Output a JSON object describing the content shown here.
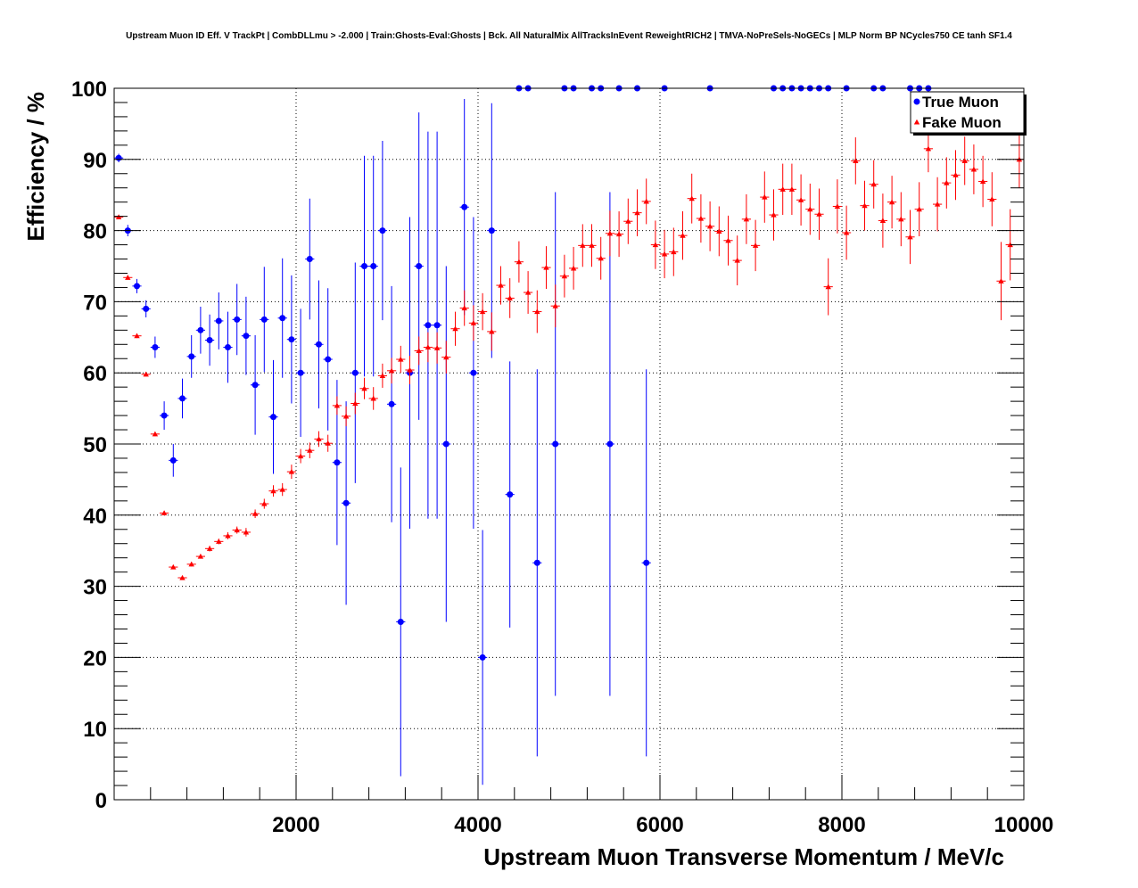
{
  "chart_data": {
    "type": "scatter",
    "title": "Upstream Muon ID Eff. V TrackPt | CombDLLmu > -2.000 | Train:Ghosts-Eval:Ghosts | Bck. All NaturalMix AllTracksInEvent ReweightRICH2 | TMVA-NoPreSels-NoGECs | MLP Norm BP NCycles750 CE tanh SF1.4",
    "xlabel": "Upstream Muon Transverse Momentum / MeV/c",
    "ylabel": "Efficiency / %",
    "xlim": [
      0,
      10000
    ],
    "ylim": [
      0,
      100
    ],
    "x_ticks": [
      2000,
      4000,
      6000,
      8000,
      10000
    ],
    "x_tick_labels": [
      "2000",
      "4000",
      "6000",
      "8000",
      "10000"
    ],
    "y_ticks": [
      0,
      10,
      20,
      30,
      40,
      50,
      60,
      70,
      80,
      90,
      100
    ],
    "y_tick_labels": [
      "0",
      "10",
      "20",
      "30",
      "40",
      "50",
      "60",
      "70",
      "80",
      "90",
      "100"
    ],
    "grid": true,
    "legend_position": "top-right",
    "series": [
      {
        "name": "True Muon",
        "color": "#0000ff",
        "marker": "circle",
        "points": [
          [
            50,
            90.2,
            0.6
          ],
          [
            150,
            80.0,
            0.8
          ],
          [
            250,
            72.2,
            1.0
          ],
          [
            350,
            69.0,
            1.2
          ],
          [
            450,
            63.6,
            1.5
          ],
          [
            550,
            54.0,
            2.0
          ],
          [
            650,
            47.7,
            2.3
          ],
          [
            750,
            56.4,
            2.8
          ],
          [
            850,
            62.3,
            3.0
          ],
          [
            950,
            66.0,
            3.3
          ],
          [
            1050,
            64.6,
            3.6
          ],
          [
            1150,
            67.3,
            4.0
          ],
          [
            1250,
            63.6,
            5.0
          ],
          [
            1350,
            67.5,
            5.0
          ],
          [
            1450,
            65.2,
            5.5
          ],
          [
            1550,
            58.3,
            7.0
          ],
          [
            1650,
            67.5,
            7.4
          ],
          [
            1750,
            53.8,
            8.0
          ],
          [
            1850,
            67.7,
            8.4
          ],
          [
            1950,
            64.7,
            9.0
          ],
          [
            2050,
            60.0,
            9.0
          ],
          [
            2150,
            76.0,
            8.5
          ],
          [
            2250,
            64.0,
            9.0
          ],
          [
            2350,
            61.9,
            10.0
          ],
          [
            2450,
            47.4,
            11.6
          ],
          [
            2550,
            41.7,
            14.3
          ],
          [
            2650,
            60.0,
            15.5
          ],
          [
            2750,
            75.0,
            15.5
          ],
          [
            2850,
            75.0,
            15.5
          ],
          [
            2950,
            80.0,
            12.6
          ],
          [
            3050,
            55.6,
            16.6
          ],
          [
            3150,
            25.0,
            21.7
          ],
          [
            3250,
            60.0,
            21.9
          ],
          [
            3350,
            75.0,
            21.6
          ],
          [
            3450,
            66.7,
            27.2
          ],
          [
            3550,
            66.7,
            27.2
          ],
          [
            3650,
            50.0,
            25.0
          ],
          [
            3850,
            83.3,
            15.2
          ],
          [
            3950,
            60.0,
            21.9
          ],
          [
            4050,
            20.0,
            17.9
          ],
          [
            4150,
            80.0,
            17.9
          ],
          [
            4350,
            42.9,
            18.7
          ],
          [
            4450,
            100.0,
            0
          ],
          [
            4550,
            100.0,
            0
          ],
          [
            4650,
            33.3,
            27.2
          ],
          [
            4850,
            50.0,
            35.4
          ],
          [
            4950,
            100.0,
            0
          ],
          [
            5050,
            100.0,
            0
          ],
          [
            5250,
            100.0,
            0
          ],
          [
            5350,
            100.0,
            0
          ],
          [
            5450,
            50.0,
            35.4
          ],
          [
            5550,
            100.0,
            0
          ],
          [
            5750,
            100.0,
            0
          ],
          [
            5850,
            33.3,
            27.2
          ],
          [
            6050,
            100.0,
            0
          ],
          [
            6550,
            100.0,
            0
          ],
          [
            7250,
            100.0,
            0
          ],
          [
            7350,
            100.0,
            0
          ],
          [
            7450,
            100.0,
            0
          ],
          [
            7550,
            100.0,
            0
          ],
          [
            7650,
            100.0,
            0
          ],
          [
            7750,
            100.0,
            0
          ],
          [
            7850,
            100.0,
            0
          ],
          [
            8050,
            100.0,
            0
          ],
          [
            8350,
            100.0,
            0
          ],
          [
            8450,
            100.0,
            0
          ],
          [
            8750,
            100.0,
            0
          ],
          [
            8850,
            100.0,
            0
          ],
          [
            8950,
            100.0,
            0
          ]
        ]
      },
      {
        "name": "Fake Muon",
        "color": "#ff0000",
        "marker": "triangle",
        "points": [
          [
            50,
            81.9,
            0.3
          ],
          [
            150,
            73.4,
            0.3
          ],
          [
            250,
            65.2,
            0.3
          ],
          [
            350,
            59.8,
            0.3
          ],
          [
            450,
            51.4,
            0.3
          ],
          [
            550,
            40.3,
            0.3
          ],
          [
            650,
            32.7,
            0.3
          ],
          [
            750,
            31.2,
            0.3
          ],
          [
            850,
            33.1,
            0.3
          ],
          [
            950,
            34.2,
            0.3
          ],
          [
            1050,
            35.3,
            0.4
          ],
          [
            1150,
            36.3,
            0.4
          ],
          [
            1250,
            37.1,
            0.5
          ],
          [
            1350,
            37.9,
            0.5
          ],
          [
            1450,
            37.6,
            0.6
          ],
          [
            1550,
            40.2,
            0.6
          ],
          [
            1650,
            41.6,
            0.7
          ],
          [
            1750,
            43.4,
            0.8
          ],
          [
            1850,
            43.6,
            0.9
          ],
          [
            1950,
            46.1,
            1.0
          ],
          [
            2050,
            48.3,
            1.0
          ],
          [
            2150,
            49.1,
            1.1
          ],
          [
            2250,
            50.7,
            1.1
          ],
          [
            2350,
            50.1,
            1.2
          ],
          [
            2450,
            55.4,
            1.3
          ],
          [
            2550,
            53.9,
            1.4
          ],
          [
            2650,
            55.7,
            1.5
          ],
          [
            2750,
            57.8,
            1.5
          ],
          [
            2850,
            56.4,
            1.6
          ],
          [
            2950,
            59.6,
            1.7
          ],
          [
            3050,
            60.3,
            1.8
          ],
          [
            3150,
            61.9,
            1.9
          ],
          [
            3250,
            60.4,
            2.0
          ],
          [
            3350,
            63.1,
            2.0
          ],
          [
            3450,
            63.6,
            2.1
          ],
          [
            3550,
            63.5,
            2.2
          ],
          [
            3650,
            62.2,
            2.3
          ],
          [
            3750,
            66.2,
            2.4
          ],
          [
            3850,
            69.1,
            2.5
          ],
          [
            3950,
            67.0,
            2.5
          ],
          [
            4050,
            68.6,
            2.6
          ],
          [
            4150,
            65.8,
            2.7
          ],
          [
            4250,
            72.3,
            2.7
          ],
          [
            4350,
            70.5,
            2.8
          ],
          [
            4450,
            75.6,
            2.9
          ],
          [
            4550,
            71.3,
            3.0
          ],
          [
            4650,
            68.6,
            3.0
          ],
          [
            4750,
            74.8,
            3.0
          ],
          [
            4850,
            69.4,
            3.0
          ],
          [
            4950,
            73.6,
            3.0
          ],
          [
            5050,
            74.7,
            3.0
          ],
          [
            5150,
            77.9,
            3.0
          ],
          [
            5250,
            77.9,
            3.0
          ],
          [
            5350,
            76.1,
            3.0
          ],
          [
            5450,
            79.6,
            3.2
          ],
          [
            5550,
            79.5,
            3.2
          ],
          [
            5650,
            81.3,
            3.2
          ],
          [
            5750,
            82.5,
            3.3
          ],
          [
            5850,
            84.1,
            3.2
          ],
          [
            5950,
            78.0,
            3.4
          ],
          [
            6050,
            76.7,
            3.4
          ],
          [
            6150,
            77.0,
            3.4
          ],
          [
            6250,
            79.3,
            3.4
          ],
          [
            6350,
            84.5,
            3.5
          ],
          [
            6450,
            81.7,
            3.4
          ],
          [
            6550,
            80.6,
            3.5
          ],
          [
            6650,
            79.9,
            3.5
          ],
          [
            6750,
            78.6,
            3.5
          ],
          [
            6850,
            75.8,
            3.5
          ],
          [
            6950,
            81.6,
            3.5
          ],
          [
            7050,
            77.9,
            3.6
          ],
          [
            7150,
            84.7,
            3.6
          ],
          [
            7250,
            82.2,
            3.6
          ],
          [
            7350,
            85.8,
            3.6
          ],
          [
            7450,
            85.8,
            3.6
          ],
          [
            7550,
            84.3,
            3.6
          ],
          [
            7650,
            83.0,
            3.6
          ],
          [
            7750,
            82.3,
            3.6
          ],
          [
            7850,
            72.1,
            4.0
          ],
          [
            7950,
            83.4,
            3.8
          ],
          [
            8050,
            79.7,
            3.8
          ],
          [
            8150,
            89.8,
            3.3
          ],
          [
            8250,
            83.5,
            3.5
          ],
          [
            8350,
            86.5,
            3.4
          ],
          [
            8450,
            81.4,
            3.8
          ],
          [
            8550,
            84.0,
            3.7
          ],
          [
            8650,
            81.6,
            3.8
          ],
          [
            8750,
            79.1,
            3.8
          ],
          [
            8850,
            83.0,
            3.8
          ],
          [
            8950,
            91.5,
            3.3
          ],
          [
            9050,
            83.7,
            3.8
          ],
          [
            9150,
            86.7,
            3.6
          ],
          [
            9250,
            87.8,
            3.5
          ],
          [
            9350,
            89.8,
            3.4
          ],
          [
            9450,
            88.6,
            3.5
          ],
          [
            9550,
            86.9,
            3.6
          ],
          [
            9650,
            84.4,
            3.8
          ],
          [
            9750,
            72.9,
            5.5
          ],
          [
            9850,
            78.0,
            5.0
          ],
          [
            9950,
            90.0,
            4.0
          ]
        ]
      }
    ]
  }
}
